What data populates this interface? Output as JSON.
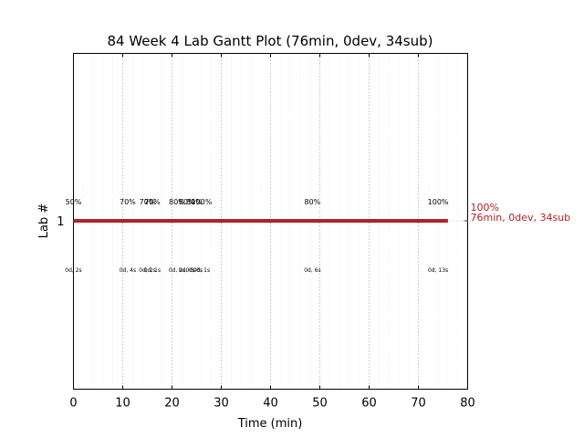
{
  "chart_data": {
    "type": "line",
    "title": "84 Week 4 Lab Gantt Plot (76min, 0dev, 34sub)",
    "xlabel": "Time (min)",
    "ylabel": "Lab #",
    "xlim": [
      0,
      80
    ],
    "xticks": [
      "0",
      "10",
      "20",
      "30",
      "40",
      "50",
      "60",
      "70",
      "80"
    ],
    "yticks": [
      "1"
    ],
    "grid": true,
    "series_color": "#b22222",
    "lab": {
      "label": "1",
      "start": 0,
      "end": 76
    },
    "events": [
      {
        "x": 0,
        "pct": "50%",
        "time": "0d, 2s"
      },
      {
        "x": 11,
        "pct": "70%",
        "time": "0d, 4s"
      },
      {
        "x": 15,
        "pct": "70%",
        "time": "0d, 2s"
      },
      {
        "x": 16,
        "pct": "70%",
        "time": "0d, 1s"
      },
      {
        "x": 21,
        "pct": "80%",
        "time": "0d, 2s"
      },
      {
        "x": 23,
        "pct": "80%",
        "time": "0d, 0s"
      },
      {
        "x": 24.5,
        "pct": "80%",
        "time": "0d, 0s"
      },
      {
        "x": 26,
        "pct": "100%",
        "time": "0d, 1s"
      },
      {
        "x": 48.5,
        "pct": "80%",
        "time": "0d, 6s"
      },
      {
        "x": 74,
        "pct": "100%",
        "time": "0d, 13s"
      }
    ],
    "end_label": {
      "pct": "100%",
      "summary": "76min, 0dev, 34sub"
    }
  }
}
